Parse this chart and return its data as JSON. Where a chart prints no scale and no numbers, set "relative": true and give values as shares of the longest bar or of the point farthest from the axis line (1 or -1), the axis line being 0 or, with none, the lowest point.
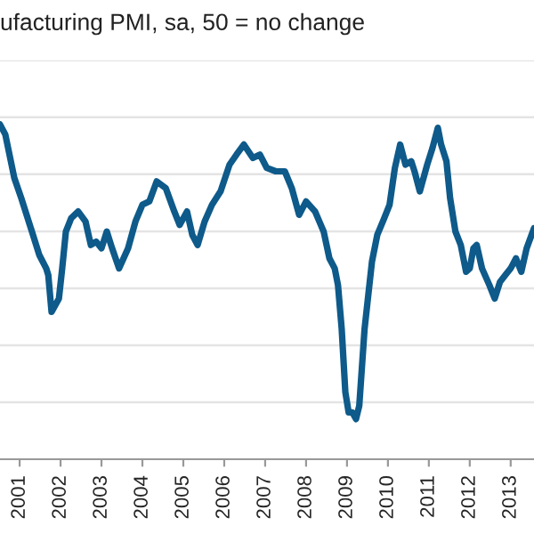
{
  "chart_data": {
    "type": "line",
    "title": "ufacturing PMI, sa, 50 = no change",
    "relative": true,
    "x": [
      2000.52,
      2000.65,
      2000.87,
      2001.04,
      2001.3,
      2001.48,
      2001.65,
      2001.7,
      2001.78,
      2001.96,
      2002.04,
      2002.13,
      2002.26,
      2002.43,
      2002.61,
      2002.74,
      2002.87,
      2003.0,
      2003.13,
      2003.26,
      2003.43,
      2003.65,
      2003.83,
      2004.0,
      2004.17,
      2004.35,
      2004.57,
      2004.78,
      2004.91,
      2005.09,
      2005.22,
      2005.35,
      2005.52,
      2005.7,
      2005.91,
      2006.13,
      2006.3,
      2006.48,
      2006.7,
      2006.87,
      2007.04,
      2007.26,
      2007.48,
      2007.65,
      2007.83,
      2008.0,
      2008.22,
      2008.43,
      2008.57,
      2008.7,
      2008.78,
      2008.87,
      2008.96,
      2009.04,
      2009.13,
      2009.22,
      2009.3,
      2009.43,
      2009.52,
      2009.61,
      2009.74,
      2009.91,
      2010.04,
      2010.17,
      2010.3,
      2010.43,
      2010.57,
      2010.65,
      2010.78,
      2010.96,
      2011.09,
      2011.22,
      2011.3,
      2011.43,
      2011.52,
      2011.65,
      2011.78,
      2011.91,
      2012.0,
      2012.09,
      2012.17,
      2012.3,
      2012.48,
      2012.61,
      2012.74,
      2012.87,
      2013.0,
      2013.13,
      2013.26,
      2013.39,
      2013.57
    ],
    "series": [
      {
        "color": "#0e5a8a",
        "values": [
          1.0,
          0.97,
          0.84,
          0.78,
          0.68,
          0.61,
          0.57,
          0.55,
          0.44,
          0.48,
          0.57,
          0.68,
          0.72,
          0.74,
          0.71,
          0.64,
          0.65,
          0.63,
          0.68,
          0.63,
          0.57,
          0.63,
          0.71,
          0.76,
          0.77,
          0.83,
          0.81,
          0.74,
          0.7,
          0.74,
          0.67,
          0.64,
          0.71,
          0.76,
          0.8,
          0.88,
          0.91,
          0.94,
          0.9,
          0.91,
          0.87,
          0.86,
          0.86,
          0.81,
          0.73,
          0.77,
          0.74,
          0.68,
          0.6,
          0.57,
          0.52,
          0.39,
          0.2,
          0.14,
          0.14,
          0.12,
          0.16,
          0.39,
          0.49,
          0.59,
          0.67,
          0.72,
          0.76,
          0.87,
          0.94,
          0.88,
          0.89,
          0.86,
          0.8,
          0.88,
          0.93,
          0.99,
          0.94,
          0.89,
          0.78,
          0.68,
          0.64,
          0.56,
          0.57,
          0.63,
          0.64,
          0.57,
          0.52,
          0.48,
          0.53,
          0.55,
          0.57,
          0.6,
          0.56,
          0.63,
          0.69
        ]
      }
    ],
    "xlim": [
      2000.52,
      2013.57
    ],
    "xticks": [
      2001,
      2002,
      2003,
      2004,
      2005,
      2006,
      2007,
      2008,
      2009,
      2010,
      2011,
      2012,
      2013
    ],
    "grid": "y",
    "tick_labels": "x",
    "marker": "none",
    "line_style": "solid"
  }
}
